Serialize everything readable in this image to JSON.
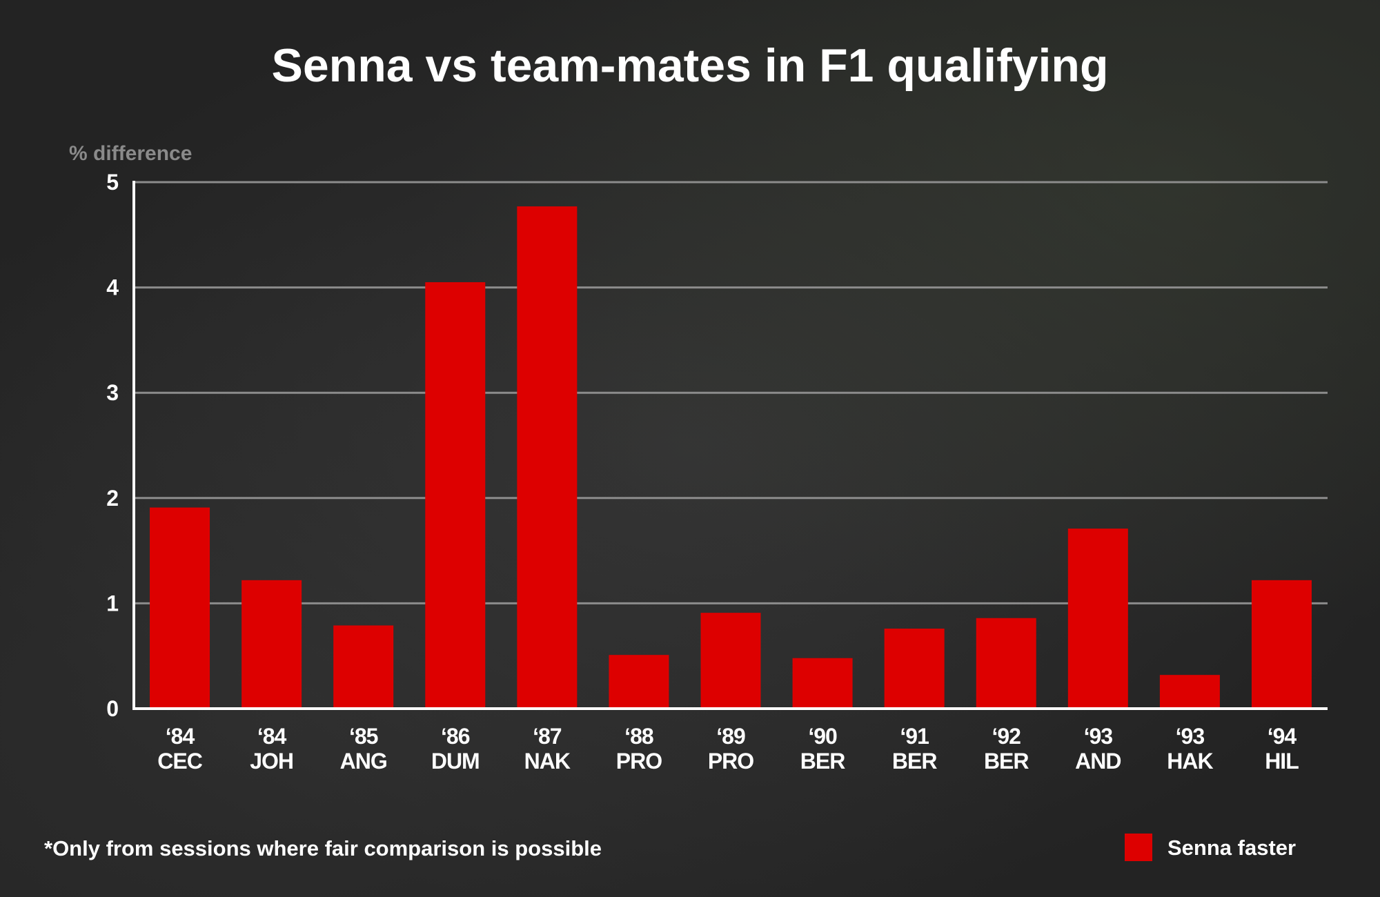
{
  "chart_data": {
    "type": "bar",
    "title": "Senna vs team-mates in F1 qualifying",
    "ylabel": "% difference",
    "xlabel": "",
    "ylim": [
      0,
      5
    ],
    "yticks": [
      "0",
      "1",
      "2",
      "3",
      "4",
      "5"
    ],
    "grid": true,
    "categories": [
      {
        "year": "‘84",
        "driver": "CEC"
      },
      {
        "year": "‘84",
        "driver": "JOH"
      },
      {
        "year": "‘85",
        "driver": "ANG"
      },
      {
        "year": "‘86",
        "driver": "DUM"
      },
      {
        "year": "‘87",
        "driver": "NAK"
      },
      {
        "year": "‘88",
        "driver": "PRO"
      },
      {
        "year": "‘89",
        "driver": "PRO"
      },
      {
        "year": "‘90",
        "driver": "BER"
      },
      {
        "year": "‘91",
        "driver": "BER"
      },
      {
        "year": "‘92",
        "driver": "BER"
      },
      {
        "year": "‘93",
        "driver": "AND"
      },
      {
        "year": "‘93",
        "driver": "HAK"
      },
      {
        "year": "‘94",
        "driver": "HIL"
      }
    ],
    "series": [
      {
        "name": "Senna faster",
        "color": "#dd0000",
        "values": [
          1.91,
          1.22,
          0.79,
          4.05,
          4.77,
          0.51,
          0.91,
          0.48,
          0.76,
          0.86,
          1.71,
          0.32,
          1.22
        ]
      }
    ],
    "legend": {
      "position": "bottom-right",
      "label": "Senna faster"
    },
    "note": "*Only from sessions where fair comparison is possible"
  },
  "colors": {
    "bar": "#dd0000",
    "gridline": "#8c8c8c",
    "axis": "#ffffff",
    "text": "#ffffff",
    "ylabel": "#8a8a8a"
  }
}
